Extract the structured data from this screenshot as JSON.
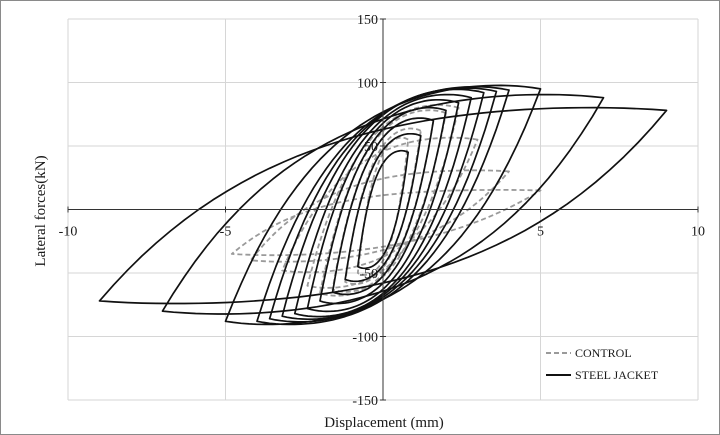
{
  "chart_data": {
    "type": "line",
    "title": "",
    "xlabel": "Displacement (mm)",
    "ylabel": "Lateral forces(kN)",
    "xlim": [
      -10,
      10
    ],
    "ylim": [
      -150,
      150
    ],
    "x_ticks": [
      -10,
      -5,
      5,
      10
    ],
    "x_tick_labels": [
      "-10",
      "-5",
      "5",
      "10"
    ],
    "y_ticks": [
      150,
      100,
      50,
      -50,
      -100,
      -150
    ],
    "y_tick_labels": [
      "150",
      "100",
      "50",
      "-50",
      "-100",
      "-150"
    ],
    "grid": "vertical and horizontal major gridlines",
    "legend_position": "bottom-right",
    "series": [
      {
        "name": "CONTROL",
        "style": "dashed",
        "color": "#9a9a9a",
        "cycles": [
          {
            "dpos": 0.8,
            "fpos": 55,
            "dneg": -0.8,
            "fneg": -50
          },
          {
            "dpos": 1.2,
            "fpos": 62,
            "dneg": -1.2,
            "fneg": -57
          },
          {
            "dpos": 1.6,
            "fpos": 70,
            "dneg": -1.6,
            "fneg": -63
          },
          {
            "dpos": 2.0,
            "fpos": 76,
            "dneg": -2.0,
            "fneg": -66
          },
          {
            "dpos": 2.4,
            "fpos": 80,
            "dneg": -2.4,
            "fneg": -60
          },
          {
            "dpos": 3.0,
            "fpos": 55,
            "dneg": -3.2,
            "fneg": -48
          },
          {
            "dpos": 4.0,
            "fpos": 30,
            "dneg": -4.2,
            "fneg": -40
          },
          {
            "dpos": 5.0,
            "fpos": 15,
            "dneg": -4.8,
            "fneg": -35
          }
        ]
      },
      {
        "name": "STEEL JACKET",
        "style": "solid",
        "color": "#111111",
        "cycles": [
          {
            "dpos": 0.8,
            "fpos": 45,
            "dneg": -0.8,
            "fneg": -45
          },
          {
            "dpos": 1.2,
            "fpos": 58,
            "dneg": -1.2,
            "fneg": -55
          },
          {
            "dpos": 1.6,
            "fpos": 70,
            "dneg": -1.6,
            "fneg": -65
          },
          {
            "dpos": 2.0,
            "fpos": 78,
            "dneg": -2.0,
            "fneg": -72
          },
          {
            "dpos": 2.4,
            "fpos": 84,
            "dneg": -2.4,
            "fneg": -78
          },
          {
            "dpos": 2.8,
            "fpos": 88,
            "dneg": -2.8,
            "fneg": -82
          },
          {
            "dpos": 3.2,
            "fpos": 92,
            "dneg": -3.2,
            "fneg": -84
          },
          {
            "dpos": 3.6,
            "fpos": 93,
            "dneg": -3.6,
            "fneg": -86
          },
          {
            "dpos": 4.0,
            "fpos": 94,
            "dneg": -4.0,
            "fneg": -88
          },
          {
            "dpos": 5.0,
            "fpos": 95,
            "dneg": -5.0,
            "fneg": -88
          },
          {
            "dpos": 7.0,
            "fpos": 88,
            "dneg": -7.0,
            "fneg": -80
          },
          {
            "dpos": 9.0,
            "fpos": 78,
            "dneg": -9.0,
            "fneg": -72
          }
        ]
      }
    ]
  }
}
